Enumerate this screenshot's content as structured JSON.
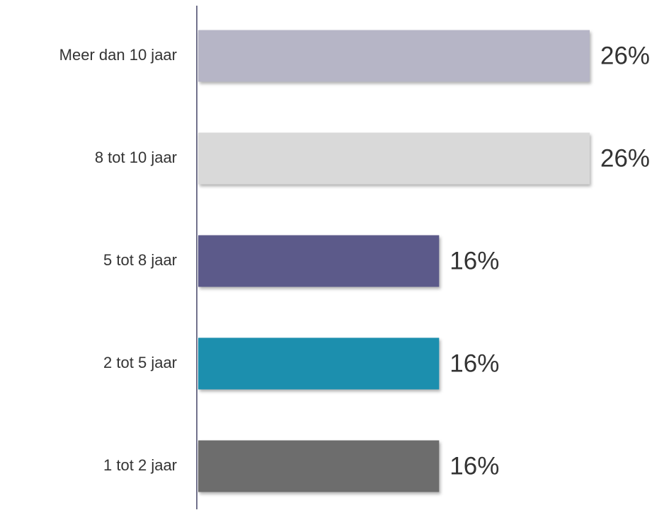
{
  "chart_data": {
    "type": "bar",
    "orientation": "horizontal",
    "categories": [
      "Meer dan 10 jaar",
      "8 tot 10 jaar",
      "5 tot 8 jaar",
      "2 tot 5 jaar",
      "1 tot 2 jaar"
    ],
    "values": [
      26,
      26,
      16,
      16,
      16
    ],
    "value_labels": [
      "26%",
      "26%",
      "16%",
      "16%",
      "16%"
    ],
    "colors": [
      "#b6b5c6",
      "#d9d9d9",
      "#5b5a8a",
      "#1f8fae",
      "#6d6d6d"
    ]
  }
}
